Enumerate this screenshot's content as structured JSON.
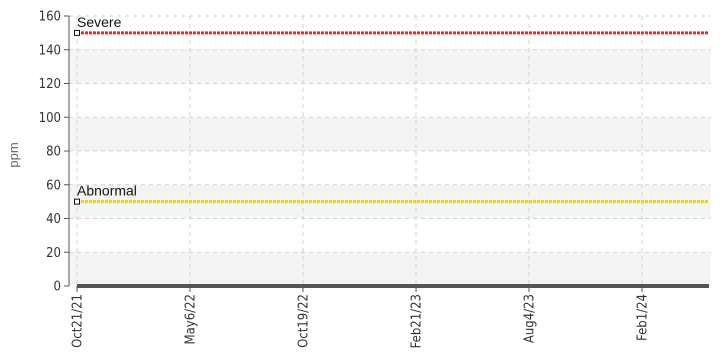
{
  "chart_data": {
    "type": "line",
    "ylabel": "ppm",
    "ylim": [
      0,
      160
    ],
    "y_ticks": [
      0,
      20,
      40,
      60,
      80,
      100,
      120,
      140,
      160
    ],
    "x_ticks": [
      "Oct21/21",
      "May6/22",
      "Oct19/22",
      "Feb21/23",
      "Aug4/23",
      "Feb1/24"
    ],
    "grid": true,
    "thresholds": [
      {
        "name": "Severe",
        "value": 150,
        "color": "#ff2020"
      },
      {
        "name": "Abnormal",
        "value": 50,
        "color": "#ffcc00"
      }
    ],
    "series": [
      {
        "color": "#555555",
        "x": [
          "Oct21/21",
          "May6/22",
          "Oct19/22",
          "Feb21/23",
          "Aug4/23",
          "Feb1/24"
        ],
        "values": [
          0,
          0,
          0,
          0,
          0,
          0
        ]
      }
    ]
  }
}
